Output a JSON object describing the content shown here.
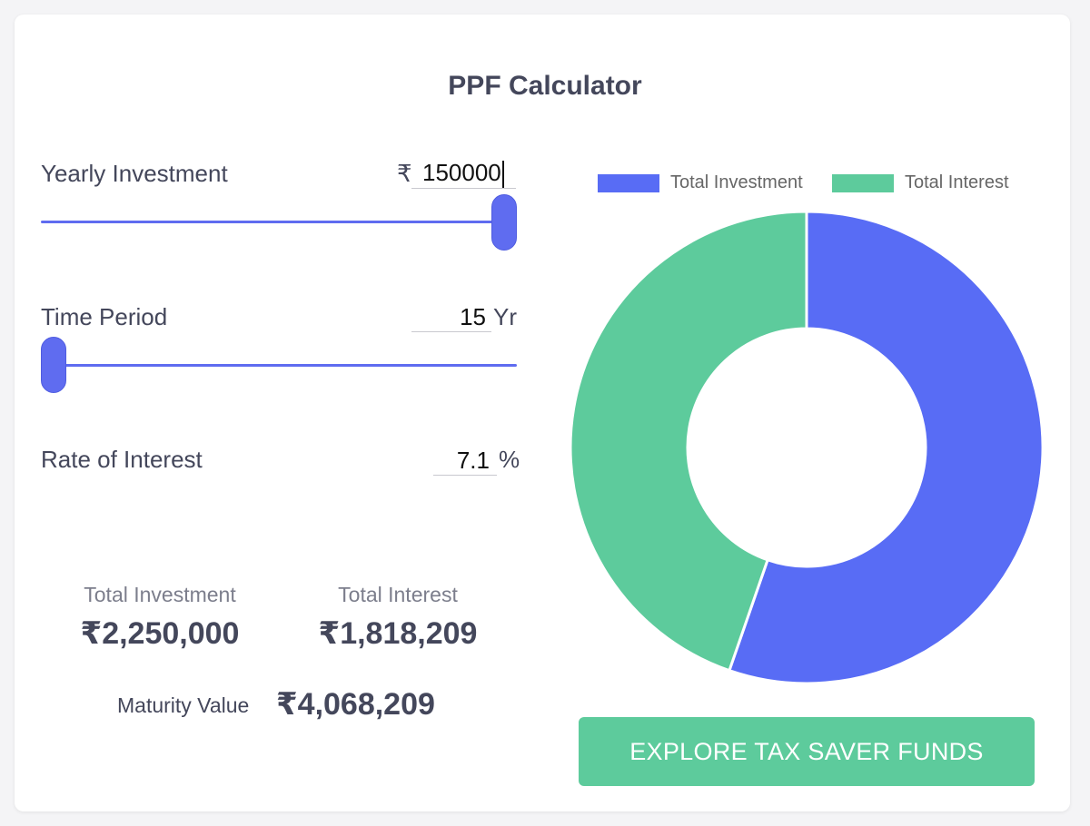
{
  "title": "PPF Calculator",
  "yearly_investment": {
    "label": "Yearly Investment",
    "currency_symbol": "₹",
    "value": "150000",
    "slider_level": 1.0
  },
  "time_period": {
    "label": "Time Period",
    "value": "15",
    "unit": "Yr",
    "slider_level": 0.0
  },
  "rate_of_interest": {
    "label": "Rate of Interest",
    "value": "7.1",
    "unit": "%"
  },
  "summary": {
    "total_investment_label": "Total Investment",
    "total_investment_value": "₹2,250,000",
    "total_interest_label": "Total Interest",
    "total_interest_value": "₹1,818,209",
    "maturity_label": "Maturity Value",
    "maturity_value": "₹4,068,209"
  },
  "chart_data": {
    "type": "pie",
    "categories": [
      "Total Investment",
      "Total Interest"
    ],
    "values": [
      2250000,
      1818209
    ],
    "colors": [
      "#586cf5",
      "#5dcb9c"
    ],
    "legend": [
      "Total Investment",
      "Total Interest"
    ],
    "legend_position": "top"
  },
  "cta": {
    "label": "EXPLORE TAX SAVER FUNDS"
  },
  "colors": {
    "accent": "#5f6cf0",
    "green": "#5dcb9c",
    "text": "#44475b"
  }
}
